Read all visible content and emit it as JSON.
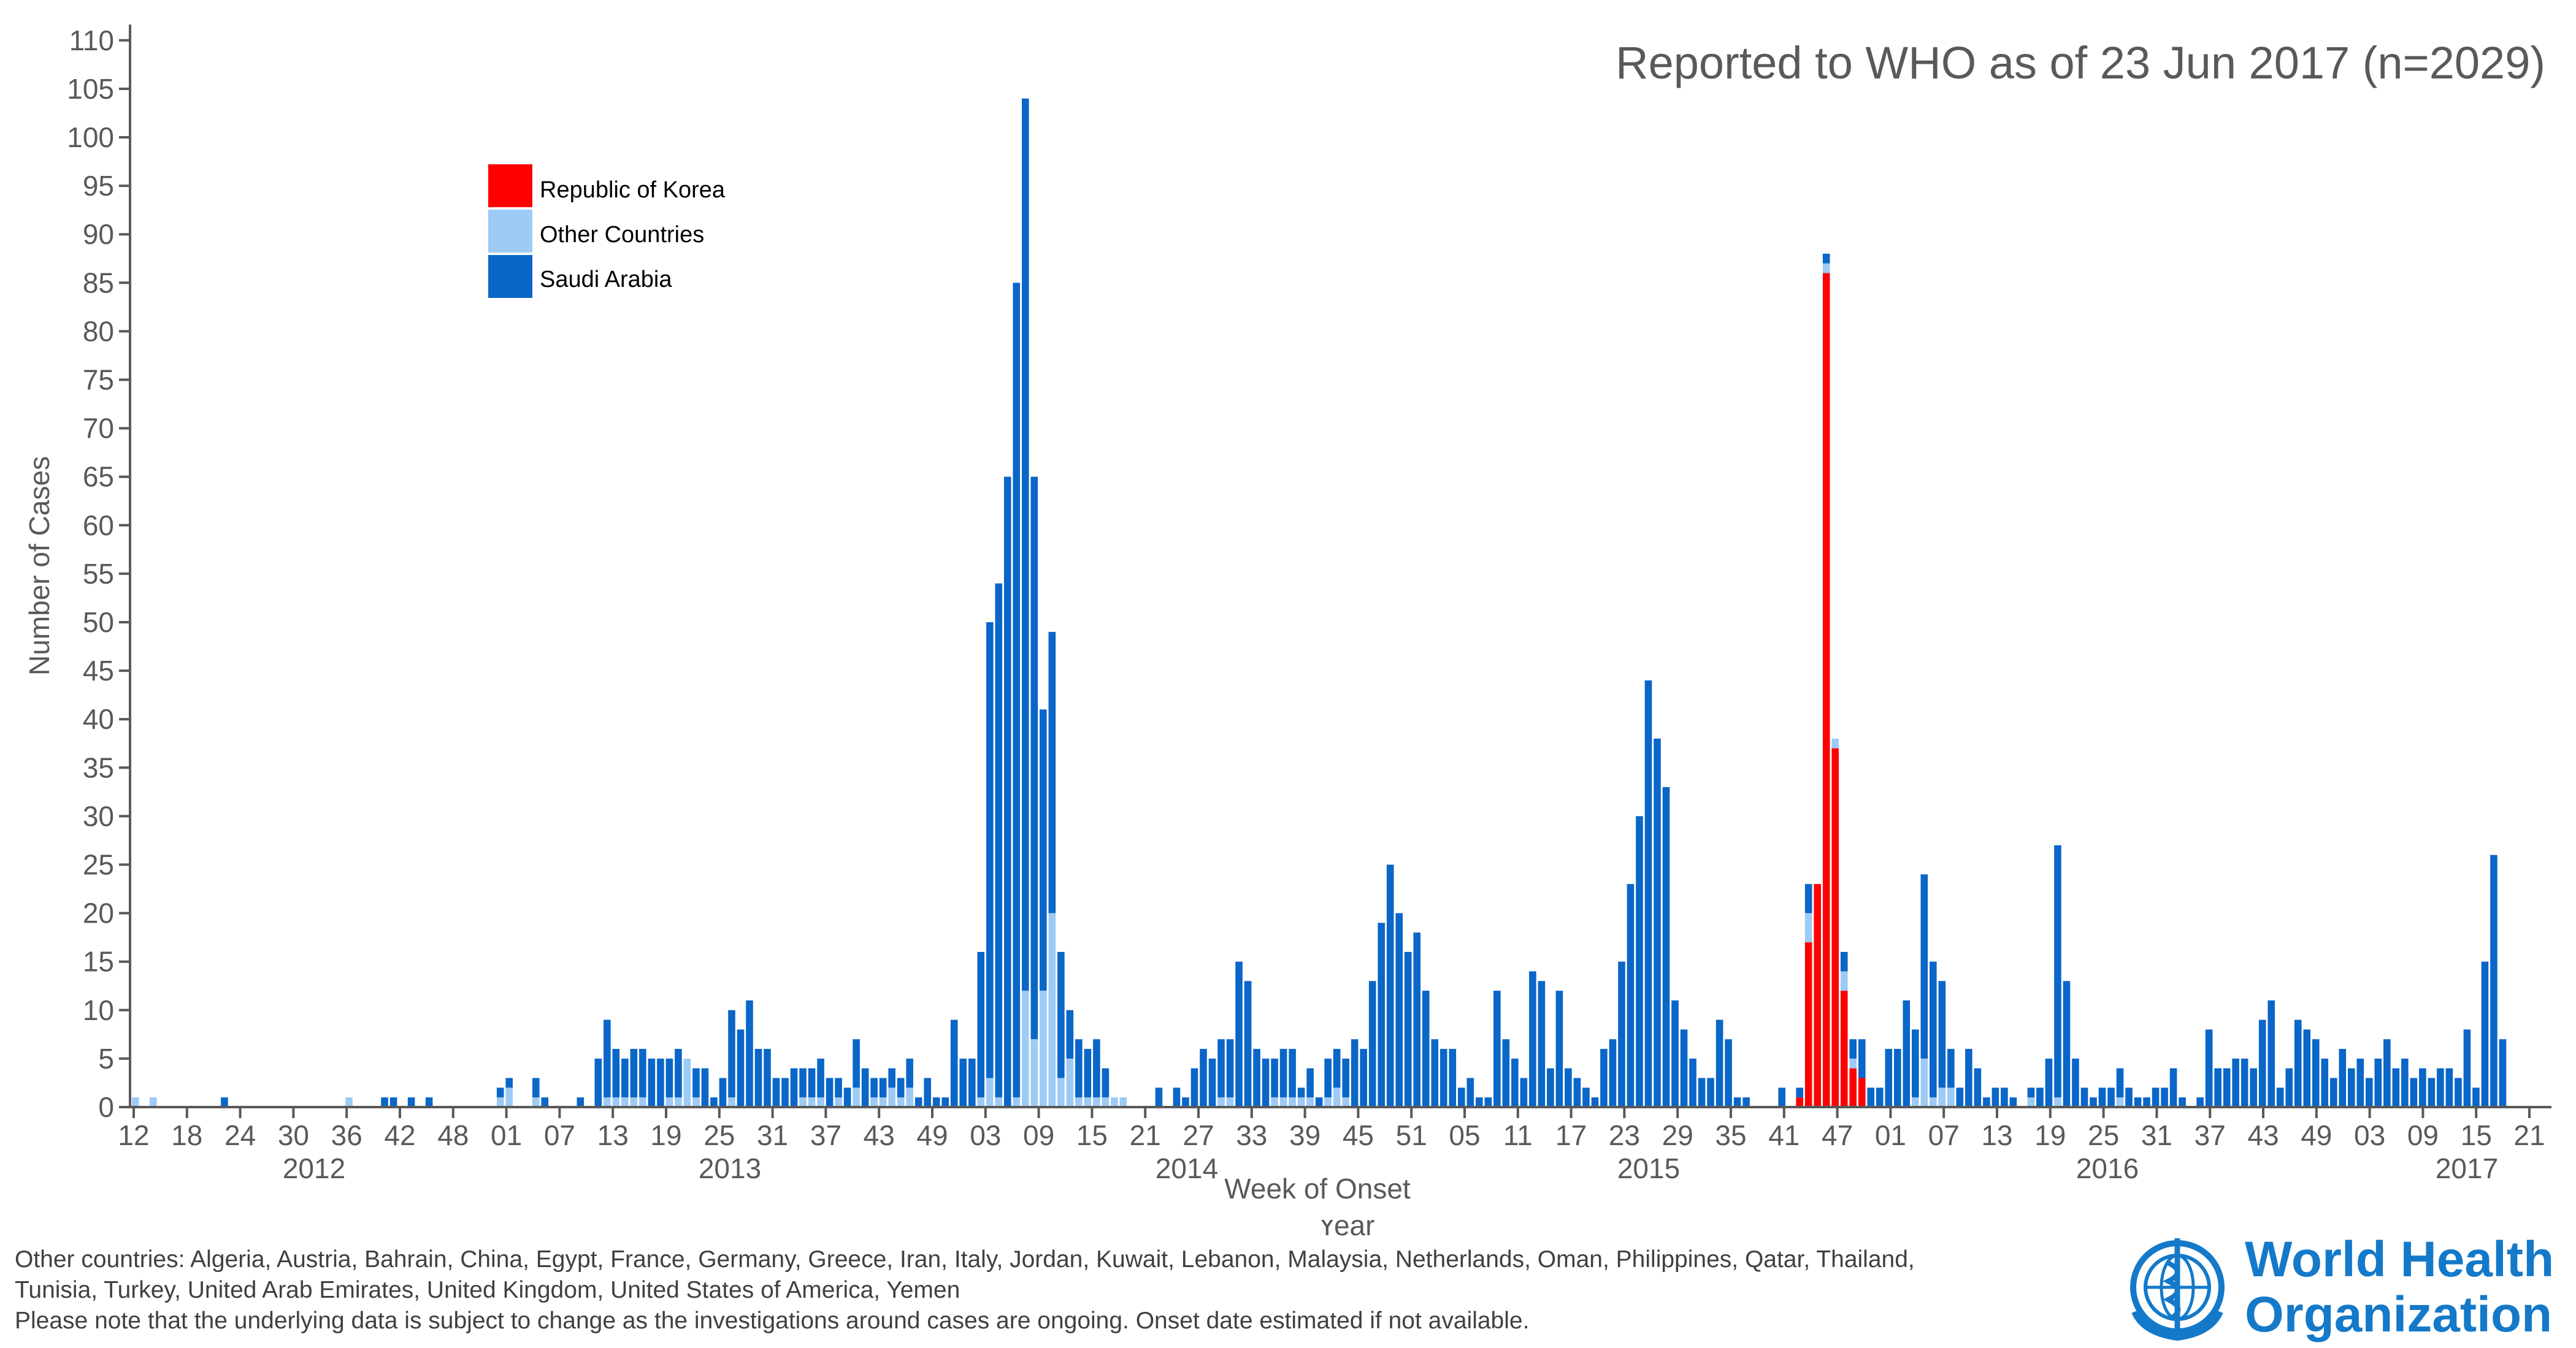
{
  "chart_data": {
    "type": "bar",
    "stacked": true,
    "title": "Reported to WHO as of 23 Jun 2017 (n=2029)",
    "xlabel": "Week of Onset",
    "xlabel2": "Year",
    "ylabel": "Number of Cases",
    "ylim": [
      0,
      112
    ],
    "yticks": [
      0,
      5,
      10,
      15,
      20,
      25,
      30,
      35,
      40,
      45,
      50,
      55,
      60,
      65,
      70,
      75,
      80,
      85,
      90,
      95,
      100,
      105,
      110
    ],
    "xtick_labels": [
      "12",
      "18",
      "24",
      "30",
      "36",
      "42",
      "48",
      "01",
      "07",
      "13",
      "19",
      "25",
      "31",
      "37",
      "43",
      "49",
      "03",
      "09",
      "15",
      "21",
      "27",
      "33",
      "39",
      "45",
      "51",
      "05",
      "11",
      "17",
      "23",
      "29",
      "35",
      "41",
      "47",
      "01",
      "07",
      "13",
      "19",
      "25",
      "31",
      "37",
      "43",
      "49",
      "03",
      "09",
      "15",
      "21"
    ],
    "years": [
      "2012",
      "2013",
      "2014",
      "2015",
      "2016",
      "2017"
    ],
    "legend": {
      "position": "top-left"
    },
    "grid": false,
    "colors": {
      "korea": "#ff0000",
      "other": "#9dcbf5",
      "saudi": "#0a66c8",
      "axis": "#595959"
    },
    "series": [
      {
        "name": "Republic of Korea",
        "color": "#ff0000",
        "values": [
          0,
          0,
          0,
          0,
          0,
          0,
          0,
          0,
          0,
          0,
          0,
          0,
          0,
          0,
          0,
          0,
          0,
          0,
          0,
          0,
          0,
          0,
          0,
          0,
          0,
          0,
          0,
          0,
          0,
          0,
          0,
          0,
          0,
          0,
          0,
          0,
          0,
          0,
          0,
          0,
          0,
          0,
          0,
          0,
          0,
          0,
          0,
          0,
          0,
          0,
          0,
          0,
          0,
          0,
          0,
          0,
          0,
          0,
          0,
          0,
          0,
          0,
          0,
          0,
          0,
          0,
          0,
          0,
          0,
          0,
          0,
          0,
          0,
          0,
          0,
          0,
          0,
          0,
          0,
          0,
          0,
          0,
          0,
          0,
          0,
          0,
          0,
          0,
          0,
          0,
          0,
          0,
          0,
          0,
          0,
          0,
          0,
          0,
          0,
          0,
          0,
          0,
          0,
          0,
          0,
          0,
          0,
          0,
          0,
          0,
          0,
          0,
          0,
          0,
          0,
          0,
          0,
          0,
          0,
          0,
          0,
          0,
          0,
          0,
          0,
          0,
          0,
          0,
          0,
          0,
          0,
          0,
          0,
          0,
          0,
          0,
          0,
          0,
          0,
          0,
          0,
          0,
          0,
          0,
          0,
          0,
          0,
          0,
          0,
          0,
          0,
          0,
          0,
          0,
          0,
          0,
          0,
          0,
          0,
          0,
          0,
          0,
          0,
          0,
          0,
          0,
          0,
          0,
          0,
          0,
          0,
          0,
          0,
          0,
          0,
          0,
          0,
          0,
          0,
          0,
          0,
          0,
          0,
          0,
          0,
          0,
          0,
          1,
          17,
          23,
          86,
          37,
          12,
          4,
          3,
          0,
          0,
          0,
          0,
          0,
          0,
          0,
          0,
          0,
          0,
          0,
          0,
          0,
          0,
          0,
          0,
          0,
          0,
          0,
          0,
          0,
          0,
          0,
          0,
          0,
          0,
          0,
          0,
          0,
          0,
          0,
          0,
          0,
          0,
          0,
          0,
          0,
          0,
          0,
          0,
          0,
          0,
          0,
          0,
          0,
          0,
          0,
          0,
          0,
          0,
          0,
          0,
          0,
          0,
          0,
          0,
          0,
          0,
          0,
          0,
          0,
          0,
          0,
          0,
          0,
          0,
          0,
          0,
          0,
          0,
          0,
          0,
          0,
          0,
          0,
          0,
          0,
          0,
          0,
          0,
          0,
          0,
          0,
          0,
          0,
          0,
          0,
          0,
          0,
          0,
          0,
          0,
          0,
          0,
          0,
          0,
          0,
          0,
          0,
          0,
          0,
          0,
          0,
          0,
          0,
          0,
          0,
          0,
          0,
          0,
          0,
          0,
          0,
          0,
          0,
          0,
          0,
          0,
          0,
          0,
          0,
          0,
          0,
          0,
          0,
          0,
          0,
          0
        ]
      },
      {
        "name": "Other Countries",
        "color": "#9dcbf5",
        "values": [
          1,
          0,
          1,
          0,
          0,
          0,
          0,
          0,
          0,
          0,
          0,
          0,
          0,
          0,
          0,
          0,
          0,
          0,
          0,
          0,
          0,
          0,
          0,
          0,
          1,
          0,
          0,
          0,
          0,
          0,
          0,
          0,
          0,
          0,
          0,
          0,
          0,
          0,
          0,
          0,
          0,
          1,
          2,
          0,
          0,
          1,
          0,
          0,
          0,
          0,
          0,
          0,
          0,
          1,
          1,
          1,
          1,
          1,
          0,
          0,
          1,
          1,
          5,
          1,
          0,
          0,
          0,
          1,
          0,
          0,
          0,
          0,
          0,
          0,
          0,
          1,
          1,
          1,
          0,
          1,
          0,
          2,
          0,
          1,
          1,
          2,
          1,
          2,
          0,
          0,
          0,
          0,
          0,
          0,
          0,
          1,
          3,
          1,
          0,
          1,
          12,
          7,
          12,
          20,
          3,
          5,
          1,
          1,
          1,
          1,
          1,
          1,
          0,
          0,
          0,
          0,
          0,
          0,
          0,
          0,
          0,
          0,
          1,
          1,
          0,
          0,
          0,
          0,
          1,
          1,
          1,
          1,
          1,
          0,
          1,
          2,
          1,
          0,
          0,
          0,
          0,
          0,
          0,
          0,
          0,
          0,
          0,
          0,
          0,
          0,
          0,
          0,
          0,
          0,
          0,
          0,
          0,
          0,
          0,
          0,
          0,
          0,
          0,
          0,
          0,
          0,
          0,
          0,
          0,
          0,
          0,
          0,
          0,
          0,
          0,
          0,
          0,
          0,
          0,
          0,
          0,
          0,
          0,
          0,
          0,
          0,
          0,
          0,
          3,
          0,
          1,
          1,
          2,
          1,
          0,
          0,
          0,
          0,
          0,
          0,
          1,
          5,
          1,
          2,
          2,
          0,
          0,
          0,
          0,
          0,
          0,
          0,
          0,
          1,
          0,
          0,
          1,
          0,
          0,
          0,
          0,
          0,
          0,
          1,
          0,
          0,
          0,
          0,
          0,
          0,
          0,
          0,
          0,
          0,
          0,
          0,
          0,
          0,
          0,
          0,
          0,
          0,
          0,
          0,
          0,
          0,
          0,
          0,
          0,
          0,
          0,
          0,
          0,
          0,
          0,
          0,
          0,
          0,
          0,
          0,
          0,
          0,
          0,
          0,
          0,
          0,
          0,
          0,
          0,
          0,
          0,
          0,
          0,
          0,
          0,
          0,
          0,
          0,
          0,
          0,
          0,
          0,
          0,
          0,
          0,
          0,
          0,
          0,
          0,
          0,
          0,
          0,
          0,
          0,
          0,
          0,
          0,
          0,
          0,
          0,
          0,
          0,
          0,
          0,
          0,
          0,
          0,
          0,
          0,
          0,
          0,
          0,
          0,
          0,
          0,
          0,
          0,
          0,
          0,
          0
        ]
      },
      {
        "name": "Saudi Arabia",
        "color": "#0a66c8",
        "values": [
          0,
          0,
          0,
          0,
          0,
          0,
          0,
          0,
          0,
          0,
          1,
          0,
          0,
          0,
          0,
          0,
          0,
          0,
          0,
          0,
          0,
          0,
          0,
          0,
          0,
          0,
          0,
          0,
          1,
          1,
          0,
          1,
          0,
          1,
          0,
          0,
          0,
          0,
          0,
          0,
          0,
          1,
          1,
          0,
          0,
          2,
          1,
          0,
          0,
          0,
          1,
          0,
          5,
          8,
          5,
          4,
          5,
          5,
          5,
          5,
          4,
          5,
          0,
          3,
          4,
          1,
          3,
          9,
          8,
          11,
          6,
          6,
          3,
          3,
          4,
          3,
          3,
          4,
          3,
          2,
          2,
          5,
          4,
          2,
          2,
          2,
          2,
          3,
          1,
          3,
          1,
          1,
          9,
          5,
          5,
          15,
          47,
          53,
          65,
          84,
          92,
          58,
          29,
          29,
          13,
          5,
          6,
          5,
          6,
          3,
          0,
          0,
          0,
          0,
          0,
          2,
          0,
          2,
          1,
          4,
          6,
          5,
          6,
          6,
          15,
          13,
          6,
          5,
          4,
          5,
          5,
          1,
          3,
          1,
          4,
          4,
          4,
          7,
          6,
          13,
          19,
          25,
          20,
          16,
          18,
          12,
          7,
          6,
          6,
          2,
          3,
          1,
          1,
          12,
          7,
          5,
          3,
          14,
          13,
          4,
          12,
          4,
          3,
          2,
          1,
          6,
          7,
          15,
          23,
          30,
          44,
          38,
          33,
          11,
          8,
          5,
          3,
          3,
          9,
          7,
          1,
          1,
          0,
          0,
          0,
          2,
          0,
          1,
          3,
          0,
          1,
          0,
          2,
          2,
          4,
          2,
          2,
          6,
          6,
          11,
          7,
          19,
          14,
          11,
          4,
          2,
          6,
          4,
          1,
          2,
          2,
          1,
          0,
          1,
          2,
          5,
          26,
          13,
          5,
          2,
          1,
          2,
          2,
          3,
          2,
          1,
          1,
          2,
          2,
          4,
          1,
          0,
          1,
          8,
          4,
          4,
          5,
          5,
          4,
          9,
          11,
          2,
          4,
          9,
          8,
          7,
          5,
          3,
          6,
          4,
          5,
          3,
          5,
          7,
          4,
          5,
          3,
          4,
          3,
          4,
          4,
          3,
          8,
          2,
          15,
          26,
          7
        ]
      }
    ]
  },
  "footnotes": {
    "line1": "Other countries: Algeria, Austria, Bahrain, China, Egypt, France, Germany, Greece, Iran, Italy, Jordan, Kuwait, Lebanon, Malaysia, Netherlands, Oman, Philippines, Qatar, Thailand,",
    "line2": "Tunisia, Turkey, United Arab Emirates, United Kingdom, United States of America, Yemen",
    "line3": "Please note that the underlying data is subject to change as the investigations around cases are ongoing. Onset date estimated if not available."
  },
  "logo": {
    "line1": "World Health",
    "line2": "Organization",
    "color": "#1479c9"
  }
}
